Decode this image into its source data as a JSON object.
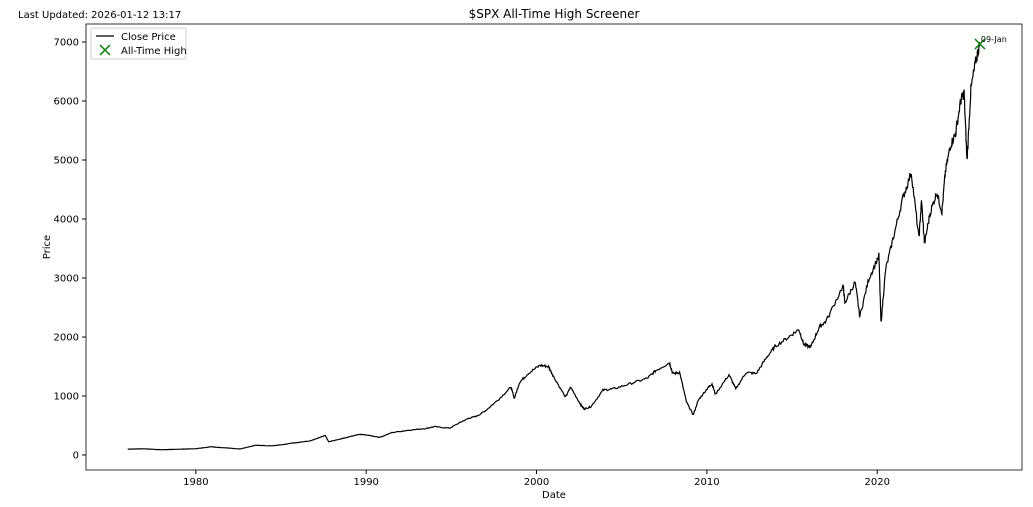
{
  "header": {
    "last_updated": "Last Updated: 2026-01-12 13:17"
  },
  "chart_data": {
    "type": "line",
    "title": "$SPX All-Time High Screener",
    "xlabel": "Date",
    "ylabel": "Price",
    "xlim": [
      1973.55,
      2028.5
    ],
    "ylim": [
      -254,
      7305
    ],
    "xticks": [
      1980,
      1990,
      2000,
      2010,
      2020
    ],
    "xtick_labels": [
      "1980",
      "1990",
      "2000",
      "2010",
      "2020"
    ],
    "yticks": [
      0,
      1000,
      2000,
      3000,
      4000,
      5000,
      6000,
      7000
    ],
    "ytick_labels": [
      "0",
      "1000",
      "2000",
      "3000",
      "4000",
      "5000",
      "6000",
      "7000"
    ],
    "grid": false,
    "legend": {
      "placement": "top-left",
      "entries": [
        "Close Price",
        "All-Time High"
      ]
    },
    "series": [
      {
        "name": "Close Price",
        "color": "#000000",
        "x": [
          1976.0,
          1977.0,
          1978.0,
          1979.0,
          1980.0,
          1980.9,
          1981.5,
          1982.6,
          1983.5,
          1984.5,
          1985.9,
          1986.7,
          1987.6,
          1987.8,
          1988.5,
          1989.6,
          1990.0,
          1990.8,
          1991.5,
          1992.5,
          1993.5,
          1994.0,
          1994.9,
          1995.5,
          1996.0,
          1996.5,
          1997.0,
          1997.8,
          1998.5,
          1998.7,
          1999.0,
          1999.5,
          2000.2,
          2000.7,
          2001.0,
          2001.7,
          2002.0,
          2002.6,
          2002.8,
          2003.2,
          2003.9,
          2004.5,
          2005.5,
          2006.5,
          2007.0,
          2007.8,
          2008.0,
          2008.4,
          2008.8,
          2009.2,
          2009.5,
          2010.0,
          2010.3,
          2010.5,
          2011.3,
          2011.7,
          2012.3,
          2012.9,
          2013.5,
          2014.0,
          2014.8,
          2015.4,
          2015.7,
          2016.1,
          2016.6,
          2017.0,
          2018.0,
          2018.1,
          2018.7,
          2018.98,
          2019.5,
          2020.1,
          2020.22,
          2020.5,
          2021.0,
          2021.5,
          2022.0,
          2022.45,
          2022.6,
          2022.78,
          2023.1,
          2023.5,
          2023.8,
          2024.0,
          2024.3,
          2024.6,
          2024.9,
          2025.1,
          2025.27,
          2025.5,
          2025.8,
          2026.03
        ],
        "y": [
          100,
          105,
          90,
          98,
          107,
          140,
          125,
          103,
          165,
          155,
          210,
          240,
          330,
          225,
          270,
          350,
          340,
          300,
          380,
          420,
          450,
          480,
          455,
          550,
          620,
          660,
          750,
          950,
          1150,
          960,
          1230,
          1380,
          1520,
          1500,
          1330,
          980,
          1150,
          850,
          780,
          820,
          1100,
          1120,
          1210,
          1300,
          1430,
          1565,
          1380,
          1400,
          900,
          680,
          930,
          1120,
          1210,
          1030,
          1360,
          1120,
          1400,
          1380,
          1650,
          1840,
          2000,
          2130,
          1870,
          1830,
          2170,
          2270,
          2870,
          2580,
          2930,
          2350,
          2980,
          3380,
          2240,
          3150,
          3750,
          4350,
          4790,
          3670,
          4300,
          3580,
          4100,
          4450,
          4120,
          4800,
          5250,
          5450,
          6000,
          6140,
          4980,
          6200,
          6700,
          6966
        ]
      },
      {
        "name": "All-Time High",
        "type": "scatter",
        "marker": "x",
        "color": "#008000",
        "x": [
          2026.03
        ],
        "y": [
          6966
        ],
        "labels": [
          "09-Jan"
        ]
      }
    ]
  }
}
